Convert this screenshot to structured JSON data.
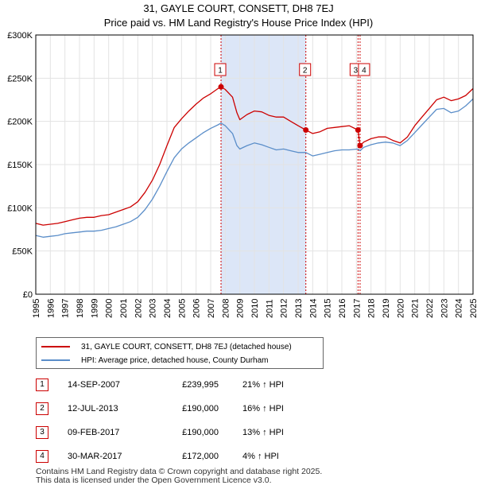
{
  "chart_data": {
    "type": "line",
    "title": "31, GAYLE COURT, CONSETT, DH8 7EJ",
    "subtitle": "Price paid vs. HM Land Registry's House Price Index (HPI)",
    "xlabel": "",
    "ylabel": "",
    "xlim": [
      1995,
      2025
    ],
    "ylim": [
      0,
      300000
    ],
    "x_ticks": [
      "1995",
      "1996",
      "1997",
      "1998",
      "1999",
      "2000",
      "2001",
      "2002",
      "2003",
      "2004",
      "2005",
      "2006",
      "2007",
      "2008",
      "2009",
      "2010",
      "2011",
      "2012",
      "2013",
      "2014",
      "2015",
      "2016",
      "2017",
      "2018",
      "2019",
      "2020",
      "2021",
      "2022",
      "2023",
      "2024",
      "2025"
    ],
    "y_ticks": [
      {
        "value": 0,
        "label": "£0"
      },
      {
        "value": 50000,
        "label": "£50K"
      },
      {
        "value": 100000,
        "label": "£100K"
      },
      {
        "value": 150000,
        "label": "£150K"
      },
      {
        "value": 200000,
        "label": "£200K"
      },
      {
        "value": 250000,
        "label": "£250K"
      },
      {
        "value": 300000,
        "label": "£300K"
      }
    ],
    "grid": true,
    "shaded_region": {
      "from": 2007.71,
      "to": 2013.53
    },
    "series": [
      {
        "name": "31, GAYLE COURT, CONSETT, DH8 7EJ (detached house)",
        "color": "#cc0000",
        "points": [
          [
            1995.0,
            82000
          ],
          [
            1995.5,
            80000
          ],
          [
            1996.0,
            81000
          ],
          [
            1996.5,
            82000
          ],
          [
            1997.0,
            84000
          ],
          [
            1997.5,
            86000
          ],
          [
            1998.0,
            88000
          ],
          [
            1998.5,
            89000
          ],
          [
            1999.0,
            89000
          ],
          [
            1999.5,
            91000
          ],
          [
            2000.0,
            92000
          ],
          [
            2000.5,
            95000
          ],
          [
            2001.0,
            98000
          ],
          [
            2001.5,
            101000
          ],
          [
            2002.0,
            107000
          ],
          [
            2002.5,
            118000
          ],
          [
            2003.0,
            132000
          ],
          [
            2003.5,
            150000
          ],
          [
            2004.0,
            172000
          ],
          [
            2004.5,
            193000
          ],
          [
            2005.0,
            203000
          ],
          [
            2005.5,
            212000
          ],
          [
            2006.0,
            220000
          ],
          [
            2006.5,
            227000
          ],
          [
            2007.0,
            232000
          ],
          [
            2007.5,
            238000
          ],
          [
            2007.71,
            239995
          ],
          [
            2008.0,
            237000
          ],
          [
            2008.5,
            228000
          ],
          [
            2008.8,
            210000
          ],
          [
            2009.0,
            202000
          ],
          [
            2009.5,
            208000
          ],
          [
            2010.0,
            212000
          ],
          [
            2010.5,
            211000
          ],
          [
            2011.0,
            207000
          ],
          [
            2011.5,
            205000
          ],
          [
            2012.0,
            205000
          ],
          [
            2012.5,
            200000
          ],
          [
            2013.0,
            195000
          ],
          [
            2013.53,
            190000
          ],
          [
            2014.0,
            186000
          ],
          [
            2014.5,
            188000
          ],
          [
            2015.0,
            192000
          ],
          [
            2015.5,
            193000
          ],
          [
            2016.0,
            194000
          ],
          [
            2016.5,
            195000
          ],
          [
            2017.11,
            190000
          ],
          [
            2017.25,
            172000
          ],
          [
            2017.5,
            176000
          ],
          [
            2018.0,
            180000
          ],
          [
            2018.5,
            182000
          ],
          [
            2019.0,
            182000
          ],
          [
            2019.5,
            178000
          ],
          [
            2020.0,
            175000
          ],
          [
            2020.5,
            182000
          ],
          [
            2021.0,
            195000
          ],
          [
            2021.5,
            205000
          ],
          [
            2022.0,
            215000
          ],
          [
            2022.5,
            225000
          ],
          [
            2023.0,
            228000
          ],
          [
            2023.5,
            224000
          ],
          [
            2024.0,
            226000
          ],
          [
            2024.5,
            230000
          ],
          [
            2025.0,
            238000
          ]
        ]
      },
      {
        "name": "HPI: Average price, detached house, County Durham",
        "color": "#5b8ec9",
        "points": [
          [
            1995.0,
            68000
          ],
          [
            1995.5,
            66000
          ],
          [
            1996.0,
            67000
          ],
          [
            1996.5,
            68000
          ],
          [
            1997.0,
            70000
          ],
          [
            1997.5,
            71000
          ],
          [
            1998.0,
            72000
          ],
          [
            1998.5,
            73000
          ],
          [
            1999.0,
            73000
          ],
          [
            1999.5,
            74000
          ],
          [
            2000.0,
            76000
          ],
          [
            2000.5,
            78000
          ],
          [
            2001.0,
            81000
          ],
          [
            2001.5,
            84000
          ],
          [
            2002.0,
            89000
          ],
          [
            2002.5,
            98000
          ],
          [
            2003.0,
            110000
          ],
          [
            2003.5,
            125000
          ],
          [
            2004.0,
            142000
          ],
          [
            2004.5,
            158000
          ],
          [
            2005.0,
            168000
          ],
          [
            2005.5,
            175000
          ],
          [
            2006.0,
            181000
          ],
          [
            2006.5,
            187000
          ],
          [
            2007.0,
            192000
          ],
          [
            2007.5,
            196000
          ],
          [
            2007.71,
            198000
          ],
          [
            2008.0,
            195000
          ],
          [
            2008.5,
            186000
          ],
          [
            2008.8,
            172000
          ],
          [
            2009.0,
            168000
          ],
          [
            2009.5,
            172000
          ],
          [
            2010.0,
            175000
          ],
          [
            2010.5,
            173000
          ],
          [
            2011.0,
            170000
          ],
          [
            2011.5,
            167000
          ],
          [
            2012.0,
            168000
          ],
          [
            2012.5,
            166000
          ],
          [
            2013.0,
            164000
          ],
          [
            2013.53,
            164000
          ],
          [
            2014.0,
            160000
          ],
          [
            2014.5,
            162000
          ],
          [
            2015.0,
            164000
          ],
          [
            2015.5,
            166000
          ],
          [
            2016.0,
            167000
          ],
          [
            2016.5,
            167000
          ],
          [
            2017.11,
            168000
          ],
          [
            2017.25,
            166000
          ],
          [
            2017.5,
            170000
          ],
          [
            2018.0,
            173000
          ],
          [
            2018.5,
            175000
          ],
          [
            2019.0,
            176000
          ],
          [
            2019.5,
            175000
          ],
          [
            2020.0,
            172000
          ],
          [
            2020.5,
            178000
          ],
          [
            2021.0,
            187000
          ],
          [
            2021.5,
            196000
          ],
          [
            2022.0,
            205000
          ],
          [
            2022.5,
            214000
          ],
          [
            2023.0,
            215000
          ],
          [
            2023.5,
            210000
          ],
          [
            2024.0,
            212000
          ],
          [
            2024.5,
            218000
          ],
          [
            2025.0,
            226000
          ]
        ]
      }
    ],
    "sale_markers": [
      {
        "label": "1",
        "x": 2007.71,
        "value": 239995
      },
      {
        "label": "2",
        "x": 2013.53,
        "value": 190000
      },
      {
        "label": "3",
        "x": 2017.11,
        "value": 190000
      },
      {
        "label": "4",
        "x": 2017.25,
        "value": 172000
      }
    ]
  },
  "legend": {
    "property_label": "31, GAYLE COURT, CONSETT, DH8 7EJ (detached house)",
    "hpi_label": "HPI: Average price, detached house, County Durham"
  },
  "sales": [
    {
      "num": "1",
      "date": "14-SEP-2007",
      "price": "£239,995",
      "hpi": "21% ↑ HPI"
    },
    {
      "num": "2",
      "date": "12-JUL-2013",
      "price": "£190,000",
      "hpi": "16% ↑ HPI"
    },
    {
      "num": "3",
      "date": "09-FEB-2017",
      "price": "£190,000",
      "hpi": "13% ↑ HPI"
    },
    {
      "num": "4",
      "date": "30-MAR-2017",
      "price": "£172,000",
      "hpi": "4% ↑ HPI"
    }
  ],
  "footer": {
    "line1": "Contains HM Land Registry data © Crown copyright and database right 2025.",
    "line2": "This data is licensed under the Open Government Licence v3.0."
  },
  "colors": {
    "property": "#cc0000",
    "hpi": "#5b8ec9",
    "shade": "#dce6f7",
    "grid": "#e3e3e3"
  }
}
